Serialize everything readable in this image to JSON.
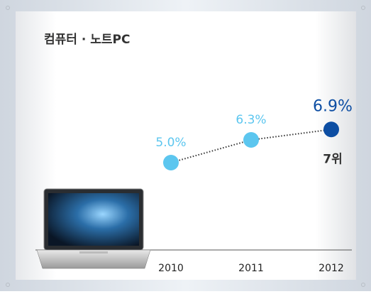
{
  "chart_data": {
    "type": "line",
    "title": "컴퓨터 · 노트PC",
    "categories": [
      "2010",
      "2011",
      "2012"
    ],
    "values": [
      5.0,
      6.3,
      6.9
    ],
    "value_labels": [
      "5.0%",
      "6.3%",
      "6.9%"
    ],
    "point_colors": [
      "#5cc6ef",
      "#5cc6ef",
      "#0d4ea3"
    ],
    "line_color": "#333333",
    "annotation": "7위",
    "ylim": [
      0,
      10
    ]
  }
}
